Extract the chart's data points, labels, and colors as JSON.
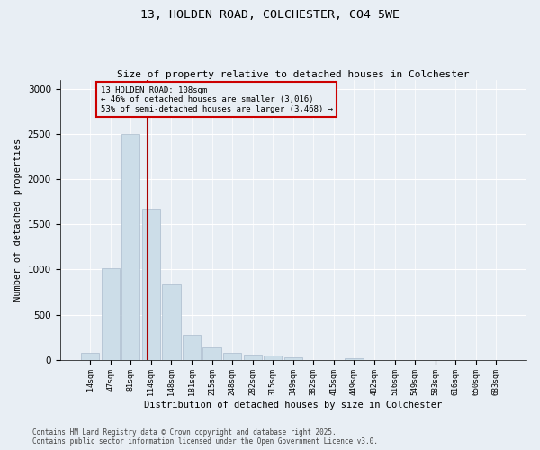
{
  "title1": "13, HOLDEN ROAD, COLCHESTER, CO4 5WE",
  "title2": "Size of property relative to detached houses in Colchester",
  "xlabel": "Distribution of detached houses by size in Colchester",
  "ylabel": "Number of detached properties",
  "footnote1": "Contains HM Land Registry data © Crown copyright and database right 2025.",
  "footnote2": "Contains public sector information licensed under the Open Government Licence v3.0.",
  "annotation_title": "13 HOLDEN ROAD: 108sqm",
  "annotation_line1": "← 46% of detached houses are smaller (3,016)",
  "annotation_line2": "53% of semi-detached houses are larger (3,468) →",
  "bar_labels": [
    "14sqm",
    "47sqm",
    "81sqm",
    "114sqm",
    "148sqm",
    "181sqm",
    "215sqm",
    "248sqm",
    "282sqm",
    "315sqm",
    "349sqm",
    "382sqm",
    "415sqm",
    "449sqm",
    "482sqm",
    "516sqm",
    "549sqm",
    "583sqm",
    "616sqm",
    "650sqm",
    "683sqm"
  ],
  "bar_values": [
    75,
    1010,
    2500,
    1670,
    830,
    280,
    140,
    75,
    55,
    45,
    30,
    0,
    0,
    20,
    0,
    0,
    0,
    0,
    0,
    0,
    0
  ],
  "vline_position": 2.82,
  "bar_color": "#ccdde8",
  "bar_edge_color": "#aabbcc",
  "vline_color": "#aa0000",
  "annotation_box_color": "#cc0000",
  "background_color": "#e8eef4",
  "ylim": [
    0,
    3100
  ],
  "yticks": [
    0,
    500,
    1000,
    1500,
    2000,
    2500,
    3000
  ]
}
